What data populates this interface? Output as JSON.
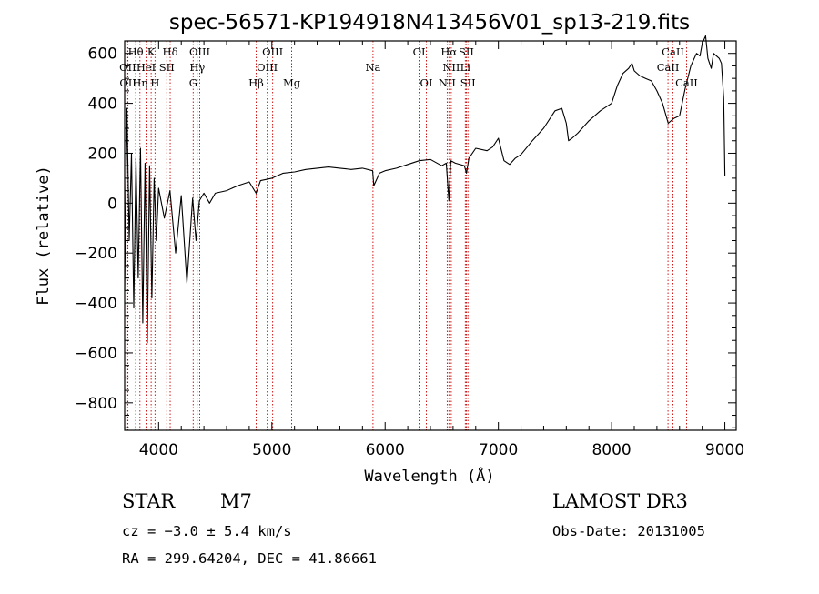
{
  "chart_data": {
    "type": "line",
    "title": "spec-56571-KP194918N413456V01_sp13-219.fits",
    "xlabel": "Wavelength (Å)",
    "ylabel": "Flux (relative)",
    "xlim": [
      3700,
      9100
    ],
    "ylim": [
      -910,
      650
    ],
    "x_ticks": [
      4000,
      5000,
      6000,
      7000,
      8000,
      9000
    ],
    "x_tick_labels": [
      "4000",
      "5000",
      "6000",
      "7000",
      "8000",
      "9000"
    ],
    "y_ticks": [
      -800,
      -600,
      -400,
      -200,
      0,
      200,
      400,
      600
    ],
    "y_tick_labels": [
      "−800",
      "−600",
      "−400",
      "−200",
      "0",
      "200",
      "400",
      "600"
    ],
    "grid": false,
    "series": [
      {
        "name": "flux",
        "x": [
          3700,
          3720,
          3740,
          3760,
          3780,
          3800,
          3820,
          3840,
          3860,
          3880,
          3900,
          3920,
          3940,
          3960,
          3980,
          4000,
          4050,
          4100,
          4150,
          4200,
          4250,
          4300,
          4330,
          4360,
          4400,
          4450,
          4500,
          4600,
          4700,
          4800,
          4860,
          4900,
          5000,
          5100,
          5200,
          5300,
          5400,
          5500,
          5600,
          5700,
          5800,
          5890,
          5900,
          5950,
          6000,
          6100,
          6200,
          6300,
          6400,
          6500,
          6540,
          6563,
          6580,
          6620,
          6700,
          6718,
          6740,
          6800,
          6900,
          6950,
          7000,
          7050,
          7100,
          7150,
          7200,
          7300,
          7400,
          7500,
          7560,
          7600,
          7620,
          7650,
          7700,
          7800,
          7900,
          8000,
          8050,
          8100,
          8150,
          8180,
          8200,
          8250,
          8300,
          8350,
          8400,
          8450,
          8500,
          8550,
          8600,
          8650,
          8700,
          8750,
          8780,
          8800,
          8830,
          8850,
          8880,
          8900,
          8950,
          8970,
          8990,
          9000
        ],
        "y": [
          -350,
          380,
          -150,
          200,
          -420,
          180,
          -300,
          220,
          -480,
          160,
          -560,
          150,
          -380,
          100,
          -150,
          60,
          -60,
          50,
          -200,
          30,
          -320,
          20,
          -150,
          10,
          40,
          0,
          40,
          50,
          70,
          85,
          40,
          90,
          100,
          120,
          125,
          135,
          140,
          145,
          140,
          135,
          140,
          130,
          70,
          120,
          130,
          140,
          155,
          170,
          175,
          150,
          160,
          10,
          170,
          160,
          150,
          120,
          180,
          220,
          210,
          225,
          260,
          170,
          155,
          180,
          195,
          250,
          300,
          370,
          380,
          320,
          250,
          260,
          280,
          330,
          370,
          400,
          470,
          520,
          540,
          560,
          530,
          510,
          500,
          490,
          450,
          400,
          320,
          340,
          350,
          460,
          550,
          600,
          590,
          640,
          670,
          580,
          540,
          600,
          580,
          560,
          420,
          110
        ]
      }
    ],
    "line_labels": [
      {
        "text": "Hθ",
        "x": 3797,
        "row": 0
      },
      {
        "text": "K",
        "x": 3934,
        "row": 0
      },
      {
        "text": "Hδ",
        "x": 4102,
        "row": 0
      },
      {
        "text": "OIII",
        "x": 4363,
        "row": 0
      },
      {
        "text": "OIII",
        "x": 5007,
        "row": 0
      },
      {
        "text": "OI",
        "x": 6300,
        "row": 0
      },
      {
        "text": "Hα",
        "x": 6563,
        "row": 0
      },
      {
        "text": "SII",
        "x": 6717,
        "row": 0
      },
      {
        "text": "CaII",
        "x": 8542,
        "row": 0
      },
      {
        "text": "OII",
        "x": 3727,
        "row": 1
      },
      {
        "text": "HeI",
        "x": 3889,
        "row": 1
      },
      {
        "text": "SII",
        "x": 4072,
        "row": 1
      },
      {
        "text": "Hγ",
        "x": 4341,
        "row": 1
      },
      {
        "text": "OIII",
        "x": 4959,
        "row": 1
      },
      {
        "text": "Na",
        "x": 5893,
        "row": 1
      },
      {
        "text": "NII",
        "x": 6584,
        "row": 1
      },
      {
        "text": "Li",
        "x": 6708,
        "row": 1
      },
      {
        "text": "CaII",
        "x": 8498,
        "row": 1
      },
      {
        "text": "OII",
        "x": 3729,
        "row": 2
      },
      {
        "text": "Hη",
        "x": 3835,
        "row": 2
      },
      {
        "text": "H",
        "x": 3968,
        "row": 2
      },
      {
        "text": "G",
        "x": 4305,
        "row": 2
      },
      {
        "text": "Hβ",
        "x": 4861,
        "row": 2
      },
      {
        "text": "Mg",
        "x": 5175,
        "row": 2
      },
      {
        "text": "OI",
        "x": 6364,
        "row": 2
      },
      {
        "text": "NII",
        "x": 6548,
        "row": 2
      },
      {
        "text": "SII",
        "x": 6731,
        "row": 2
      },
      {
        "text": "CaII",
        "x": 8662,
        "row": 2
      }
    ],
    "marker_lines": [
      3727,
      3729,
      3797,
      3835,
      3889,
      3934,
      3968,
      4072,
      4102,
      4305,
      4341,
      4363,
      4861,
      4959,
      5007,
      5175,
      5893,
      6300,
      6364,
      6548,
      6563,
      6584,
      6708,
      6717,
      6731,
      8498,
      8542,
      8662
    ],
    "marker_color": "#cc0000"
  },
  "info": {
    "object_class": "STAR",
    "subclass": "M7",
    "survey": "LAMOST DR3",
    "redshift": "cz = −3.0 ± 5.4 km/s",
    "obs_date": "Obs-Date: 20131005",
    "coords": "RA = 299.64204, DEC =  41.86661"
  }
}
